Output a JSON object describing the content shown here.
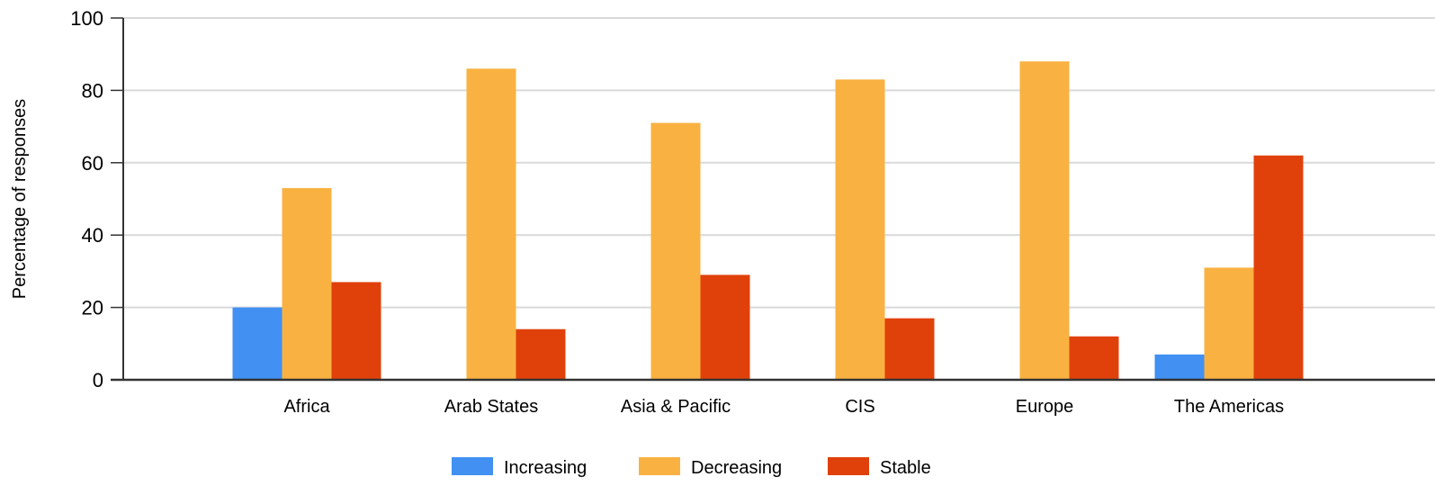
{
  "chart_data": {
    "type": "bar",
    "title": "",
    "xlabel": "",
    "ylabel": "Percentage of responses",
    "ylim": [
      0,
      100
    ],
    "yticks": [
      0,
      20,
      40,
      60,
      80,
      100
    ],
    "grid": true,
    "legend_position": "bottom",
    "categories": [
      "Africa",
      "Arab States",
      "Asia & Pacific",
      "CIS",
      "Europe",
      "The Americas"
    ],
    "series": [
      {
        "name": "Increasing",
        "color": "#4190f2",
        "values": [
          20,
          0,
          0,
          0,
          0,
          7
        ]
      },
      {
        "name": "Decreasing",
        "color": "#f9b241",
        "values": [
          53,
          86,
          71,
          83,
          88,
          31
        ]
      },
      {
        "name": "Stable",
        "color": "#e0410b",
        "values": [
          27,
          14,
          29,
          17,
          12,
          62
        ]
      }
    ]
  }
}
